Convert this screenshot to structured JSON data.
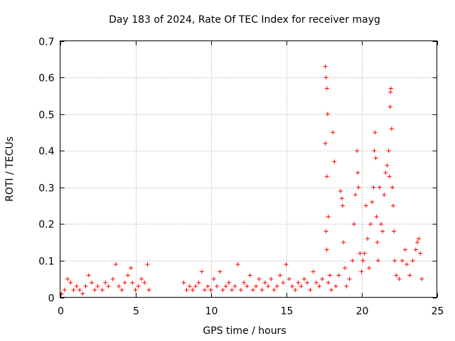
{
  "chart_data": {
    "type": "scatter",
    "title": "Day 183 of 2024, Rate Of TEC Index for receiver mayg",
    "xlabel": "GPS time / hours",
    "ylabel": "ROTI / TECUs",
    "xlim": [
      0,
      25
    ],
    "ylim": [
      0,
      0.7
    ],
    "xticks": [
      0,
      5,
      10,
      15,
      20,
      25
    ],
    "xtick_labels": [
      "0",
      "5",
      "10",
      "15",
      "20",
      "25"
    ],
    "yticks": [
      0,
      0.1,
      0.2,
      0.3,
      0.4,
      0.5,
      0.6,
      0.7
    ],
    "ytick_labels": [
      "0",
      "0.1",
      "0.2",
      "0.3",
      "0.4",
      "0.5",
      "0.6",
      "0.7"
    ],
    "grid": true,
    "marker": "+",
    "marker_color": "#ff0000",
    "series": [
      {
        "name": "ROTI",
        "points": [
          [
            0.1,
            0.01
          ],
          [
            0.3,
            0.02
          ],
          [
            0.5,
            0.05
          ],
          [
            0.7,
            0.04
          ],
          [
            0.9,
            0.02
          ],
          [
            1.1,
            0.03
          ],
          [
            1.3,
            0.02
          ],
          [
            1.5,
            0.01
          ],
          [
            1.7,
            0.03
          ],
          [
            1.9,
            0.06
          ],
          [
            2.1,
            0.04
          ],
          [
            2.3,
            0.02
          ],
          [
            2.5,
            0.03
          ],
          [
            2.8,
            0.02
          ],
          [
            3.0,
            0.04
          ],
          [
            3.2,
            0.03
          ],
          [
            3.5,
            0.05
          ],
          [
            3.7,
            0.09
          ],
          [
            3.9,
            0.03
          ],
          [
            4.1,
            0.02
          ],
          [
            4.3,
            0.04
          ],
          [
            4.5,
            0.06
          ],
          [
            4.7,
            0.08
          ],
          [
            4.8,
            0.04
          ],
          [
            5.0,
            0.02
          ],
          [
            5.2,
            0.03
          ],
          [
            5.4,
            0.05
          ],
          [
            5.6,
            0.04
          ],
          [
            5.8,
            0.09
          ],
          [
            5.9,
            0.02
          ],
          [
            8.2,
            0.04
          ],
          [
            8.4,
            0.02
          ],
          [
            8.6,
            0.03
          ],
          [
            8.8,
            0.02
          ],
          [
            9.0,
            0.03
          ],
          [
            9.2,
            0.04
          ],
          [
            9.4,
            0.07
          ],
          [
            9.6,
            0.02
          ],
          [
            9.8,
            0.03
          ],
          [
            10.0,
            0.02
          ],
          [
            10.2,
            0.05
          ],
          [
            10.4,
            0.03
          ],
          [
            10.6,
            0.07
          ],
          [
            10.8,
            0.02
          ],
          [
            11.0,
            0.03
          ],
          [
            11.2,
            0.04
          ],
          [
            11.4,
            0.02
          ],
          [
            11.6,
            0.03
          ],
          [
            11.8,
            0.09
          ],
          [
            12.0,
            0.02
          ],
          [
            12.2,
            0.04
          ],
          [
            12.4,
            0.03
          ],
          [
            12.6,
            0.06
          ],
          [
            12.8,
            0.02
          ],
          [
            13.0,
            0.03
          ],
          [
            13.2,
            0.05
          ],
          [
            13.4,
            0.02
          ],
          [
            13.6,
            0.04
          ],
          [
            13.8,
            0.03
          ],
          [
            14.0,
            0.05
          ],
          [
            14.2,
            0.02
          ],
          [
            14.4,
            0.03
          ],
          [
            14.6,
            0.06
          ],
          [
            14.8,
            0.04
          ],
          [
            15.0,
            0.09
          ],
          [
            15.2,
            0.05
          ],
          [
            15.4,
            0.03
          ],
          [
            15.6,
            0.02
          ],
          [
            15.8,
            0.04
          ],
          [
            16.0,
            0.03
          ],
          [
            16.2,
            0.05
          ],
          [
            16.4,
            0.04
          ],
          [
            16.6,
            0.02
          ],
          [
            16.8,
            0.07
          ],
          [
            17.0,
            0.04
          ],
          [
            17.2,
            0.03
          ],
          [
            17.4,
            0.05
          ],
          [
            17.6,
            0.63
          ],
          [
            17.65,
            0.6
          ],
          [
            17.7,
            0.57
          ],
          [
            17.75,
            0.5
          ],
          [
            17.6,
            0.42
          ],
          [
            17.7,
            0.33
          ],
          [
            17.8,
            0.22
          ],
          [
            17.65,
            0.18
          ],
          [
            17.7,
            0.13
          ],
          [
            17.8,
            0.04
          ],
          [
            17.9,
            0.06
          ],
          [
            18.1,
            0.45
          ],
          [
            18.2,
            0.37
          ],
          [
            18.0,
            0.02
          ],
          [
            18.3,
            0.03
          ],
          [
            18.5,
            0.06
          ],
          [
            18.6,
            0.29
          ],
          [
            18.7,
            0.27
          ],
          [
            18.75,
            0.25
          ],
          [
            18.8,
            0.15
          ],
          [
            18.9,
            0.08
          ],
          [
            19.0,
            0.03
          ],
          [
            19.2,
            0.05
          ],
          [
            19.4,
            0.1
          ],
          [
            19.5,
            0.2
          ],
          [
            19.6,
            0.28
          ],
          [
            19.7,
            0.4
          ],
          [
            19.75,
            0.34
          ],
          [
            19.8,
            0.3
          ],
          [
            19.9,
            0.12
          ],
          [
            20.0,
            0.07
          ],
          [
            20.1,
            0.1
          ],
          [
            20.2,
            0.12
          ],
          [
            20.3,
            0.25
          ],
          [
            20.4,
            0.16
          ],
          [
            20.5,
            0.08
          ],
          [
            20.6,
            0.2
          ],
          [
            20.7,
            0.26
          ],
          [
            20.8,
            0.3
          ],
          [
            20.85,
            0.4
          ],
          [
            20.9,
            0.45
          ],
          [
            20.95,
            0.38
          ],
          [
            21.0,
            0.22
          ],
          [
            21.05,
            0.15
          ],
          [
            21.1,
            0.1
          ],
          [
            21.2,
            0.3
          ],
          [
            21.3,
            0.2
          ],
          [
            21.4,
            0.18
          ],
          [
            21.5,
            0.28
          ],
          [
            21.6,
            0.34
          ],
          [
            21.7,
            0.36
          ],
          [
            21.8,
            0.4
          ],
          [
            21.85,
            0.33
          ],
          [
            21.9,
            0.52
          ],
          [
            21.92,
            0.56
          ],
          [
            21.95,
            0.57
          ],
          [
            22.0,
            0.46
          ],
          [
            22.05,
            0.3
          ],
          [
            22.1,
            0.25
          ],
          [
            22.15,
            0.18
          ],
          [
            22.2,
            0.1
          ],
          [
            22.3,
            0.06
          ],
          [
            22.5,
            0.05
          ],
          [
            22.7,
            0.1
          ],
          [
            22.9,
            0.13
          ],
          [
            23.0,
            0.09
          ],
          [
            23.2,
            0.06
          ],
          [
            23.4,
            0.1
          ],
          [
            23.6,
            0.13
          ],
          [
            23.7,
            0.15
          ],
          [
            23.8,
            0.16
          ],
          [
            23.9,
            0.12
          ],
          [
            24.0,
            0.05
          ]
        ]
      }
    ]
  }
}
